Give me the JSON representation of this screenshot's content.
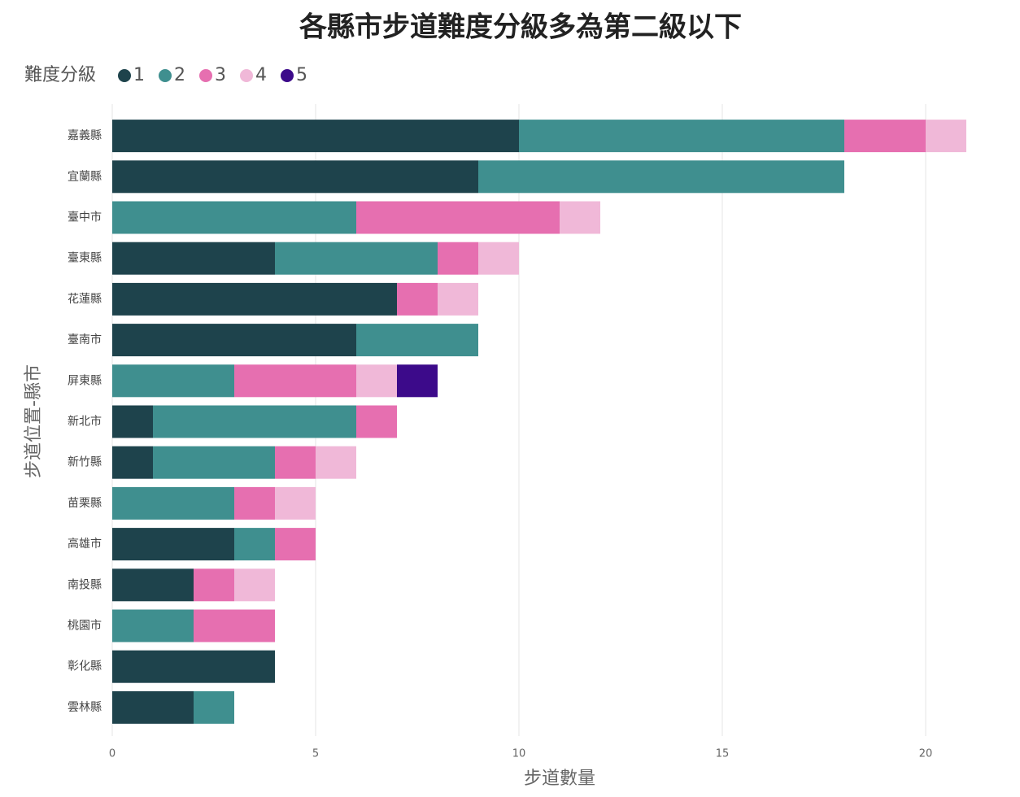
{
  "chart_data": {
    "type": "stacked-barh",
    "title": "各縣市步道難度分級多為第二級以下",
    "legend_title": "難度分級",
    "categories": [
      "嘉義縣",
      "宜蘭縣",
      "臺中市",
      "臺東縣",
      "花蓮縣",
      "臺南市",
      "屏東縣",
      "新北市",
      "新竹縣",
      "苗栗縣",
      "高雄市",
      "南投縣",
      "桃園市",
      "彰化縣",
      "雲林縣"
    ],
    "series": [
      {
        "name": "1",
        "color": "#1e434c",
        "values": [
          10,
          9,
          0,
          4,
          7,
          6,
          0,
          1,
          1,
          0,
          3,
          2,
          0,
          4,
          2
        ]
      },
      {
        "name": "2",
        "color": "#3f8f8f",
        "values": [
          8,
          9,
          6,
          4,
          0,
          3,
          3,
          5,
          3,
          3,
          1,
          0,
          2,
          0,
          1
        ]
      },
      {
        "name": "3",
        "color": "#e66fb0",
        "values": [
          2,
          0,
          5,
          1,
          1,
          0,
          3,
          1,
          1,
          1,
          1,
          1,
          2,
          0,
          0
        ]
      },
      {
        "name": "4",
        "color": "#f0b8d8",
        "values": [
          1,
          0,
          1,
          1,
          1,
          0,
          1,
          0,
          1,
          1,
          0,
          1,
          0,
          0,
          0
        ]
      },
      {
        "name": "5",
        "color": "#3c0a8a",
        "values": [
          0,
          0,
          0,
          0,
          0,
          0,
          1,
          0,
          0,
          0,
          0,
          0,
          0,
          0,
          0
        ]
      }
    ],
    "x_label": "步道數量",
    "y_label": "步道位置-縣市",
    "xlim": [
      0,
      21
    ],
    "xticks": [
      0,
      5,
      10,
      15,
      20
    ],
    "grid": true
  }
}
